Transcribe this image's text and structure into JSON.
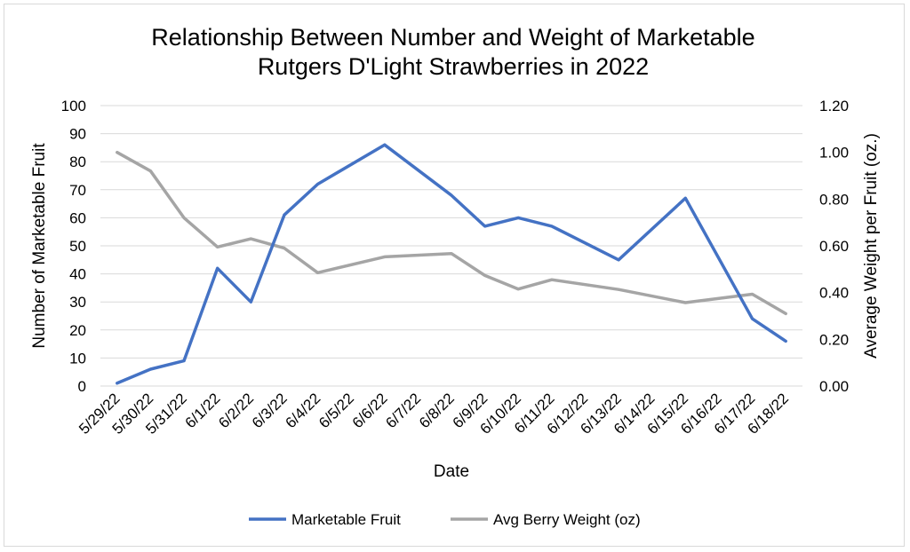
{
  "chart_data": {
    "type": "line",
    "title": [
      "Relationship Between Number and Weight of Marketable",
      "Rutgers D'Light Strawberries in 2022"
    ],
    "xlabel": "Date",
    "ylabel_left": "Number of Marketable Fruit",
    "ylabel_right": "Average Weight per Fruit (oz.)",
    "ylim_left": [
      0,
      100
    ],
    "yticks_left": [
      "0",
      "10",
      "20",
      "30",
      "40",
      "50",
      "60",
      "70",
      "80",
      "90",
      "100"
    ],
    "ylim_right": [
      0,
      1.2
    ],
    "yticks_right": [
      "0.00",
      "0.20",
      "0.40",
      "0.60",
      "0.80",
      "1.00",
      "1.20"
    ],
    "grid": true,
    "legend_position": "bottom",
    "categories": [
      "5/29/22",
      "5/30/22",
      "5/31/22",
      "6/1/22",
      "6/2/22",
      "6/3/22",
      "6/4/22",
      "6/5/22",
      "6/6/22",
      "6/7/22",
      "6/8/22",
      "6/9/22",
      "6/10/22",
      "6/11/22",
      "6/12/22",
      "6/13/22",
      "6/14/22",
      "6/15/22",
      "6/16/22",
      "6/17/22",
      "6/18/22"
    ],
    "series": [
      {
        "name": "Marketable Fruit",
        "axis": "left",
        "color": "#4472c4",
        "x": [
          "5/29/22",
          "5/30/22",
          "5/31/22",
          "6/1/22",
          "6/2/22",
          "6/3/22",
          "6/4/22",
          "6/6/22",
          "6/8/22",
          "6/9/22",
          "6/10/22",
          "6/11/22",
          "6/13/22",
          "6/15/22",
          "6/17/22",
          "6/18/22"
        ],
        "values": [
          1,
          6,
          9,
          42,
          30,
          61,
          72,
          86,
          68,
          57,
          60,
          57,
          45,
          67,
          24,
          16
        ]
      },
      {
        "name": "Avg Berry Weight (oz)",
        "axis": "right",
        "color": "#a5a5a5",
        "x": [
          "5/29/22",
          "5/30/22",
          "5/31/22",
          "6/1/22",
          "6/2/22",
          "6/3/22",
          "6/4/22",
          "6/6/22",
          "6/8/22",
          "6/9/22",
          "6/10/22",
          "6/11/22",
          "6/13/22",
          "6/15/22",
          "6/17/22",
          "6/18/22"
        ],
        "values": [
          1.0,
          0.92,
          0.72,
          0.595,
          0.63,
          0.59,
          0.485,
          0.553,
          0.567,
          0.473,
          0.415,
          0.455,
          0.413,
          0.357,
          0.393,
          0.31
        ]
      }
    ]
  }
}
